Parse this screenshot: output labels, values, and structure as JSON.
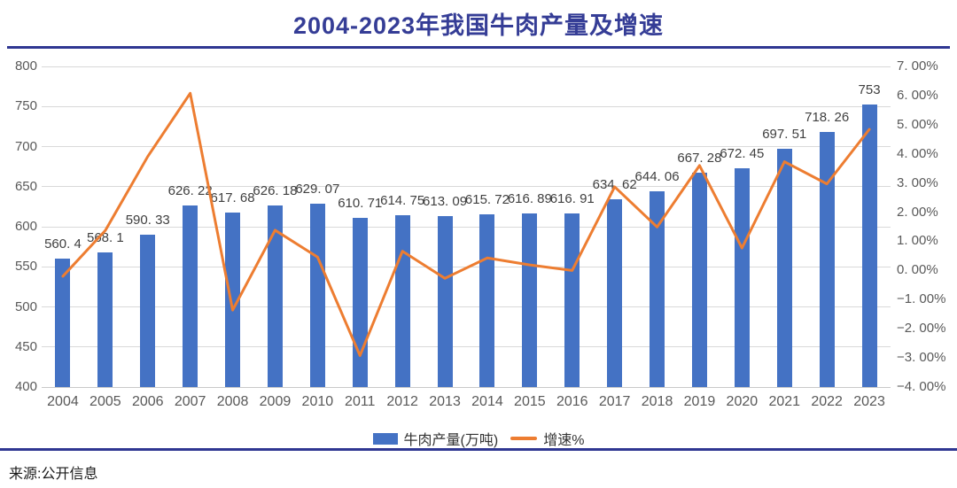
{
  "title": "2004-2023年我国牛肉产量及增速",
  "source": "来源:公开信息",
  "legend": {
    "bars_label": "牛肉产量(万吨)",
    "line_label": "增速%"
  },
  "colors": {
    "bar": "#4472C4",
    "line": "#ED7D31",
    "title": "#353D96",
    "rule": "#2F3792",
    "axis_text": "#595959",
    "label_text": "#404040",
    "gridline": "#D9D9D9"
  },
  "chart_data": {
    "type": "bar",
    "subtype": "bar+line combo, dual axis",
    "title": "2004-2023年我国牛肉产量及增速",
    "categories": [
      "2004",
      "2005",
      "2006",
      "2007",
      "2008",
      "2009",
      "2010",
      "2011",
      "2012",
      "2013",
      "2014",
      "2015",
      "2016",
      "2017",
      "2018",
      "2019",
      "2020",
      "2021",
      "2022",
      "2023"
    ],
    "series": [
      {
        "name": "牛肉产量(万吨)",
        "type": "bar",
        "axis": "left",
        "values": [
          560.4,
          568.1,
          590.33,
          626.22,
          617.68,
          626.18,
          629.07,
          610.71,
          614.75,
          613.09,
          615.72,
          616.89,
          616.91,
          634.62,
          644.06,
          667.28,
          672.45,
          697.51,
          718.26,
          753
        ],
        "labels": [
          "560. 4",
          "568. 1",
          "590. 33",
          "626. 22",
          "617. 68",
          "626. 18",
          "629. 07",
          "610. 71",
          "614. 75",
          "613. 09",
          "615. 72",
          "616. 89",
          "616. 91",
          "634. 62",
          "644. 06",
          "667. 28",
          "672. 45",
          "697. 51",
          "718. 26",
          "753"
        ]
      },
      {
        "name": "增速%",
        "type": "line",
        "axis": "right",
        "values": [
          -0.2,
          1.37,
          3.91,
          6.08,
          -1.36,
          1.38,
          0.46,
          -2.92,
          0.66,
          -0.27,
          0.43,
          0.19,
          0.0,
          2.87,
          1.49,
          3.6,
          0.77,
          3.73,
          2.97,
          4.84
        ]
      }
    ],
    "left_axis": {
      "min": 400,
      "max": 800,
      "step": 50,
      "ticks": [
        "800",
        "750",
        "700",
        "650",
        "600",
        "550",
        "500",
        "450",
        "400"
      ]
    },
    "right_axis": {
      "min": -4,
      "max": 7,
      "step": 1,
      "ticks": [
        "7. 00%",
        "6. 00%",
        "5. 00%",
        "4. 00%",
        "3. 00%",
        "2. 00%",
        "1. 00%",
        "0. 00%",
        "−1. 00%",
        "−2. 00%",
        "−3. 00%",
        "−4. 00%"
      ]
    },
    "grid": "horizontal gridlines at left-axis ticks",
    "legend_position": "bottom center",
    "data_labels": "above bars"
  }
}
